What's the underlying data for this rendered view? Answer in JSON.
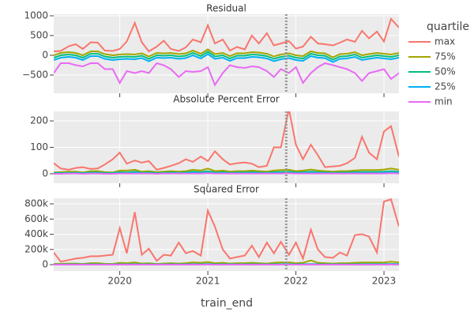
{
  "chart_data": [
    {
      "type": "line",
      "title": "Residual",
      "legend_title": "quartile",
      "xlabel": "train_end",
      "vline": 2021.89,
      "x": [
        2019.25,
        2019.33,
        2019.42,
        2019.5,
        2019.58,
        2019.67,
        2019.75,
        2019.83,
        2019.92,
        2020,
        2020.08,
        2020.17,
        2020.25,
        2020.33,
        2020.42,
        2020.5,
        2020.58,
        2020.67,
        2020.75,
        2020.83,
        2020.92,
        2021,
        2021.08,
        2021.17,
        2021.25,
        2021.33,
        2021.42,
        2021.5,
        2021.58,
        2021.67,
        2021.75,
        2021.83,
        2021.92,
        2022,
        2022.08,
        2022.17,
        2022.25,
        2022.33,
        2022.42,
        2022.5,
        2022.58,
        2022.67,
        2022.75,
        2022.83,
        2022.92,
        2023,
        2023.08,
        2023.17
      ],
      "xlim": [
        2019.25,
        2023.17
      ],
      "xticks": [
        2020,
        2021,
        2022,
        2023
      ],
      "ylim": [
        -960,
        1040
      ],
      "yticks": [
        {
          "value": -500,
          "label": "−500"
        },
        0,
        500,
        1000
      ],
      "series": [
        {
          "name": "max",
          "color": "#F8766D",
          "values": [
            100,
            110,
            230,
            280,
            160,
            330,
            320,
            120,
            110,
            160,
            350,
            820,
            330,
            100,
            220,
            370,
            160,
            110,
            200,
            400,
            330,
            760,
            300,
            400,
            120,
            210,
            150,
            500,
            300,
            560,
            250,
            300,
            360,
            170,
            220,
            470,
            300,
            280,
            250,
            320,
            400,
            340,
            620,
            430,
            600,
            350,
            920,
            700
          ]
        },
        {
          "name": "75%",
          "color": "#A3A500",
          "values": [
            0,
            60,
            80,
            60,
            0,
            100,
            100,
            30,
            0,
            20,
            30,
            20,
            50,
            -30,
            60,
            50,
            60,
            30,
            50,
            120,
            40,
            150,
            30,
            60,
            -20,
            50,
            50,
            80,
            70,
            40,
            -30,
            20,
            50,
            0,
            -20,
            100,
            60,
            50,
            -50,
            30,
            40,
            80,
            0,
            30,
            60,
            40,
            20,
            60
          ]
        },
        {
          "name": "50%",
          "color": "#00BF7D",
          "values": [
            -60,
            0,
            20,
            0,
            -60,
            40,
            40,
            -30,
            -60,
            -40,
            -30,
            -40,
            -10,
            -90,
            0,
            -10,
            0,
            -30,
            -10,
            60,
            -20,
            90,
            -30,
            0,
            -80,
            -10,
            -10,
            20,
            10,
            -20,
            -90,
            -40,
            -10,
            -60,
            -80,
            40,
            0,
            -10,
            -110,
            -30,
            -20,
            20,
            -60,
            -30,
            0,
            -20,
            -40,
            0
          ]
        },
        {
          "name": "25%",
          "color": "#00B0F6",
          "values": [
            -120,
            -60,
            -40,
            -60,
            -120,
            -20,
            -20,
            -90,
            -120,
            -100,
            -90,
            -100,
            -70,
            -150,
            -60,
            -70,
            -60,
            -90,
            -70,
            0,
            -80,
            30,
            -90,
            -60,
            -140,
            -70,
            -70,
            -40,
            -50,
            -80,
            -150,
            -100,
            -70,
            -120,
            -140,
            -20,
            -60,
            -70,
            -170,
            -90,
            -80,
            -40,
            -120,
            -90,
            -60,
            -80,
            -100,
            -60
          ]
        },
        {
          "name": "min",
          "color": "#E76BF3",
          "values": [
            -450,
            -200,
            -200,
            -250,
            -280,
            -200,
            -200,
            -350,
            -350,
            -700,
            -400,
            -450,
            -400,
            -450,
            -200,
            -250,
            -350,
            -550,
            -400,
            -420,
            -400,
            -300,
            -750,
            -450,
            -250,
            -300,
            -320,
            -280,
            -300,
            -400,
            -550,
            -350,
            -450,
            -300,
            -700,
            -450,
            -300,
            -200,
            -250,
            -300,
            -350,
            -450,
            -650,
            -450,
            -400,
            -350,
            -600,
            -450
          ]
        }
      ]
    },
    {
      "type": "line",
      "title": "Absolute Percent Error",
      "ylim": [
        -36,
        236
      ],
      "yticks": [
        0,
        100,
        200
      ],
      "series": [
        {
          "values": [
            40,
            20,
            15,
            22,
            25,
            18,
            20,
            35,
            55,
            80,
            38,
            50,
            42,
            48,
            15,
            22,
            30,
            40,
            55,
            45,
            65,
            48,
            85,
            55,
            35,
            40,
            43,
            38,
            25,
            30,
            100,
            100,
            245,
            110,
            55,
            110,
            70,
            25,
            28,
            30,
            40,
            60,
            140,
            80,
            55,
            160,
            180,
            65
          ]
        },
        {
          "values": [
            5,
            6,
            8,
            8,
            5,
            10,
            10,
            6,
            5,
            12,
            12,
            15,
            8,
            10,
            6,
            8,
            10,
            8,
            10,
            15,
            12,
            20,
            10,
            12,
            8,
            10,
            10,
            12,
            10,
            8,
            12,
            14,
            15,
            10,
            12,
            16,
            12,
            10,
            8,
            10,
            10,
            12,
            14,
            14,
            14,
            16,
            20,
            15
          ]
        },
        {
          "values": [
            3,
            3,
            4,
            4,
            3,
            5,
            5,
            3,
            3,
            6,
            5,
            8,
            4,
            5,
            3,
            4,
            5,
            4,
            5,
            8,
            6,
            10,
            5,
            6,
            4,
            5,
            5,
            6,
            5,
            4,
            6,
            7,
            8,
            5,
            6,
            8,
            6,
            5,
            4,
            5,
            5,
            6,
            7,
            7,
            7,
            8,
            10,
            8
          ]
        },
        {
          "values": [
            1,
            1,
            2,
            2,
            1,
            2,
            2,
            1,
            1,
            3,
            2,
            4,
            2,
            2,
            1,
            2,
            2,
            2,
            2,
            4,
            3,
            5,
            2,
            3,
            2,
            2,
            2,
            3,
            2,
            2,
            3,
            3,
            4,
            2,
            3,
            4,
            3,
            2,
            2,
            2,
            2,
            3,
            3,
            3,
            3,
            4,
            5,
            4
          ]
        },
        {
          "values": [
            0,
            0,
            1,
            1,
            0,
            1,
            1,
            0,
            0,
            1,
            1,
            1,
            1,
            1,
            0,
            1,
            1,
            1,
            1,
            1,
            1,
            2,
            1,
            1,
            1,
            1,
            1,
            1,
            1,
            1,
            1,
            1,
            2,
            1,
            1,
            1,
            1,
            1,
            1,
            1,
            1,
            1,
            1,
            1,
            1,
            1,
            2,
            1
          ]
        }
      ]
    },
    {
      "type": "line",
      "title": "Squared Error",
      "ylim": [
        -83000,
        873000
      ],
      "yticks": [
        0,
        {
          "value": 200000,
          "label": "200k"
        },
        {
          "value": 400000,
          "label": "400k"
        },
        {
          "value": 600000,
          "label": "600k"
        },
        {
          "value": 800000,
          "label": "800k"
        }
      ],
      "series": [
        {
          "values": [
            160000,
            40000,
            60000,
            80000,
            90000,
            110000,
            110000,
            120000,
            130000,
            480000,
            150000,
            690000,
            130000,
            210000,
            50000,
            130000,
            120000,
            290000,
            150000,
            180000,
            120000,
            710000,
            500000,
            200000,
            80000,
            100000,
            120000,
            250000,
            100000,
            290000,
            150000,
            300000,
            130000,
            290000,
            80000,
            460000,
            200000,
            100000,
            90000,
            160000,
            120000,
            390000,
            400000,
            370000,
            160000,
            830000,
            860000,
            500000
          ]
        },
        {
          "values": [
            10000,
            12000,
            15000,
            15000,
            10000,
            20000,
            20000,
            12000,
            10000,
            25000,
            20000,
            30000,
            15000,
            20000,
            10000,
            15000,
            20000,
            15000,
            20000,
            30000,
            25000,
            35000,
            20000,
            25000,
            15000,
            20000,
            20000,
            25000,
            20000,
            15000,
            25000,
            30000,
            30000,
            20000,
            25000,
            55000,
            25000,
            20000,
            15000,
            20000,
            20000,
            25000,
            28000,
            28000,
            28000,
            30000,
            40000,
            30000
          ]
        },
        {
          "values": [
            3000,
            3000,
            4000,
            4000,
            3000,
            5000,
            5000,
            3000,
            3000,
            6000,
            5000,
            8000,
            4000,
            5000,
            3000,
            4000,
            5000,
            4000,
            5000,
            8000,
            6000,
            10000,
            5000,
            6000,
            4000,
            5000,
            5000,
            6000,
            5000,
            4000,
            6000,
            7000,
            8000,
            5000,
            6000,
            8000,
            6000,
            5000,
            4000,
            5000,
            5000,
            6000,
            7000,
            7000,
            7000,
            8000,
            10000,
            8000
          ]
        },
        {
          "values": [
            1000,
            1000,
            2000,
            2000,
            1000,
            2000,
            2000,
            1000,
            1000,
            3000,
            2000,
            4000,
            2000,
            2000,
            1000,
            2000,
            2000,
            2000,
            2000,
            4000,
            3000,
            5000,
            2000,
            3000,
            2000,
            2000,
            2000,
            3000,
            2000,
            2000,
            3000,
            3000,
            4000,
            2000,
            3000,
            4000,
            3000,
            2000,
            2000,
            2000,
            2000,
            3000,
            3000,
            3000,
            3000,
            4000,
            5000,
            4000
          ]
        },
        {
          "values": [
            0,
            0,
            500,
            500,
            0,
            500,
            500,
            0,
            0,
            1000,
            500,
            1000,
            500,
            500,
            0,
            500,
            500,
            500,
            500,
            1000,
            500,
            1500,
            500,
            500,
            500,
            500,
            500,
            500,
            500,
            500,
            500,
            500,
            1000,
            500,
            500,
            1000,
            500,
            500,
            500,
            500,
            500,
            500,
            500,
            500,
            500,
            500,
            1500,
            500
          ]
        }
      ]
    }
  ]
}
